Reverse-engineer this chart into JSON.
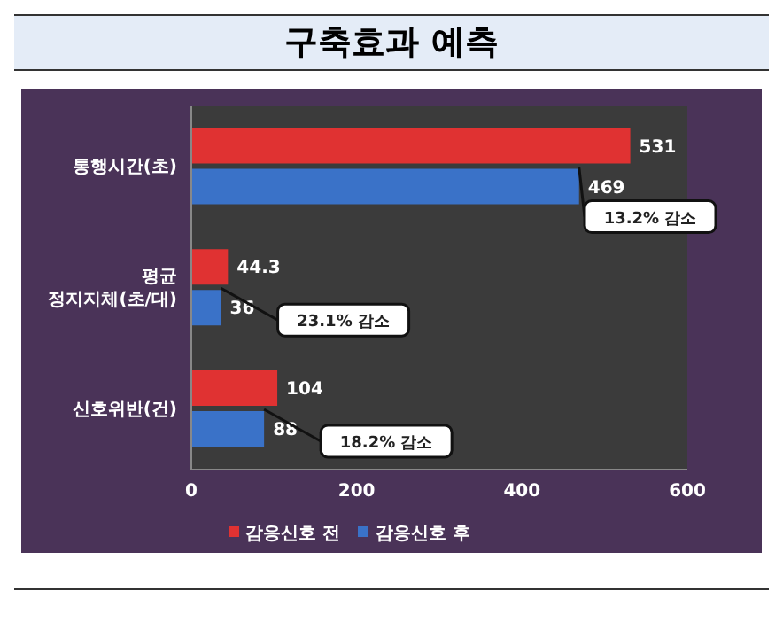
{
  "chart_data": {
    "type": "bar",
    "title": "구축효과 예측",
    "orientation": "horizontal",
    "categories": [
      "통행시간(초)",
      "평균 정지지체(초/대)",
      "신호위반(건)"
    ],
    "series": [
      {
        "name": "감응신호 전",
        "color": "#e03232",
        "values": [
          531,
          44.3,
          104
        ]
      },
      {
        "name": "감응신호 후",
        "color": "#3a72c8",
        "values": [
          469,
          36,
          88
        ]
      }
    ],
    "xlim": [
      0,
      600
    ],
    "xticks": [
      0,
      200,
      400,
      600
    ],
    "data_labels": true,
    "legend": "bottom",
    "annotations": [
      {
        "text": "13.2% 감소",
        "x": 469,
        "y": "통행시간(초)"
      },
      {
        "text": "23.1% 감소",
        "x": 36,
        "y": "평균 정지지체(초/대)"
      },
      {
        "text": "18.2% 감소",
        "x": 88,
        "y": "신호위반(건)"
      }
    ]
  }
}
